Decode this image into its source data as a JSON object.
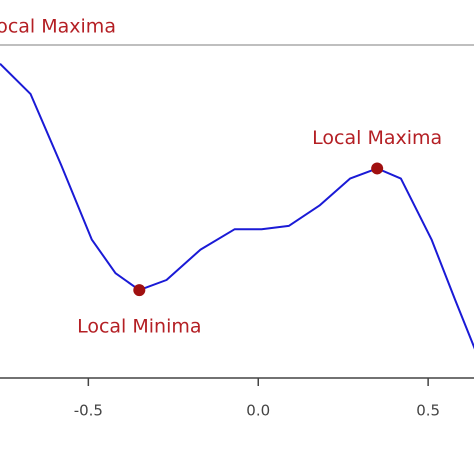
{
  "chart_data": {
    "type": "line",
    "x": [
      -0.76,
      -0.67,
      -0.58,
      -0.49,
      -0.42,
      -0.35,
      -0.27,
      -0.17,
      -0.07,
      0.01,
      0.09,
      0.18,
      0.27,
      0.35,
      0.42,
      0.51,
      0.58,
      0.64
    ],
    "values": [
      0.93,
      0.84,
      0.63,
      0.41,
      0.31,
      0.26,
      0.29,
      0.38,
      0.44,
      0.44,
      0.45,
      0.51,
      0.59,
      0.62,
      0.59,
      0.41,
      0.23,
      0.08
    ],
    "color": "#1a1ad6",
    "xlim": [
      -0.76,
      0.635
    ],
    "ylim": [
      0,
      1
    ],
    "xticks": [
      -0.5,
      {
        "value": 0,
        "label": "0.0"
      },
      0.5
    ],
    "annotations": [
      {
        "text": "Local Maxima",
        "x": -0.61,
        "y": 0.95,
        "position": "above",
        "marker": false
      },
      {
        "text": "Local Minima",
        "x": -0.35,
        "y": 0.26,
        "position": "below",
        "marker": true
      },
      {
        "text": "Local Maxima",
        "x": 0.35,
        "y": 0.62,
        "position": "above",
        "marker": true
      }
    ],
    "marker_color": "#a01010"
  }
}
